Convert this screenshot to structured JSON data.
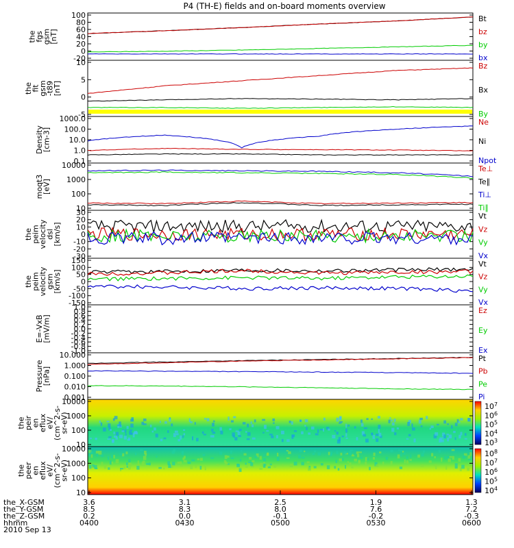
{
  "title": "P4 (TH-E) fields and on-board moments overview",
  "chart_data": [
    {
      "type": "line",
      "ylabel": [
        "the",
        "fgs",
        "gsm",
        "[nT]"
      ],
      "yticks": [
        "100",
        "80",
        "60",
        "40",
        "20",
        "0",
        "-20"
      ],
      "ylim": [
        -20,
        100
      ],
      "legend": [
        {
          "name": "Bt",
          "color": "#000000"
        },
        {
          "name": "bz",
          "color": "#cc0000"
        },
        {
          "name": "by",
          "color": "#00cc00"
        },
        {
          "name": "bx",
          "color": "#0000cc"
        }
      ],
      "series": [
        {
          "name": "Bt",
          "color": "#000000",
          "values": [
            48,
            55,
            63,
            72,
            80,
            90
          ]
        },
        {
          "name": "bz",
          "color": "#cc0000",
          "values": [
            48,
            55,
            63,
            72,
            80,
            90
          ]
        },
        {
          "name": "by",
          "color": "#00cc00",
          "values": [
            1,
            3,
            6,
            10,
            14,
            18
          ]
        },
        {
          "name": "bx",
          "color": "#0000cc",
          "values": [
            -4,
            -4,
            -4,
            -4,
            -4,
            -4
          ]
        }
      ]
    },
    {
      "type": "line",
      "ylabel": [
        "the",
        "fit",
        "gsm",
        "-t89",
        "[nT]"
      ],
      "yticks": [
        "10",
        "5",
        "0",
        "-5"
      ],
      "ylim": [
        -8,
        14
      ],
      "legend": [
        {
          "name": "Bz",
          "color": "#cc0000"
        },
        {
          "name": "Bx",
          "color": "#000000"
        },
        {
          "name": "By",
          "color": "#00cc00"
        }
      ],
      "series": [
        {
          "name": "Bz",
          "color": "#cc0000",
          "values": [
            1,
            4,
            6,
            8,
            10,
            11
          ]
        },
        {
          "name": "Bx",
          "color": "#000000",
          "values": [
            -2,
            -1.5,
            -1,
            -1.2,
            -1.5,
            -1
          ]
        },
        {
          "name": "By",
          "color": "#00cc00",
          "values": [
            -4.5,
            -4.5,
            -4.8,
            -4.5,
            -4.2,
            -4.5
          ]
        }
      ]
    },
    {
      "type": "line",
      "ylabel": [
        "Density",
        "[cm-3]"
      ],
      "yticks": [
        "1000.0",
        "100.0",
        "10.0",
        "1.0",
        "0.1"
      ],
      "ylim": [
        0.1,
        1000
      ],
      "log": true,
      "legend": [
        {
          "name": "Ne",
          "color": "#cc0000"
        },
        {
          "name": "Ni",
          "color": "#000000"
        },
        {
          "name": "Npot",
          "color": "#0000cc"
        }
      ],
      "series": [
        {
          "name": "Ne",
          "color": "#cc0000",
          "values": [
            1.2,
            1.8,
            1.5,
            1.4,
            1.3,
            1.1
          ]
        },
        {
          "name": "Ni",
          "color": "#000000",
          "values": [
            0.5,
            0.6,
            0.6,
            0.5,
            0.5,
            0.5
          ]
        },
        {
          "name": "Npot",
          "color": "#0000cc",
          "values": [
            8,
            25,
            2,
            20,
            80,
            150
          ]
        }
      ]
    },
    {
      "type": "line",
      "ylabel": [
        "moqt3",
        "[eV]"
      ],
      "yticks": [
        "10000",
        "1000",
        "100",
        "10"
      ],
      "ylim": [
        30,
        12000
      ],
      "log": true,
      "legend": [
        {
          "name": "Te⊥",
          "color": "#cc0000"
        },
        {
          "name": "Te∥",
          "color": "#000000"
        },
        {
          "name": "Ti⊥",
          "color": "#0000cc"
        },
        {
          "name": "Ti∥",
          "color": "#00cc00"
        }
      ],
      "series": [
        {
          "name": "Te⊥",
          "color": "#cc0000",
          "values": [
            75,
            70,
            95,
            70,
            75,
            80
          ]
        },
        {
          "name": "Te∥",
          "color": "#000000",
          "values": [
            60,
            55,
            80,
            55,
            60,
            65
          ]
        },
        {
          "name": "Ti⊥",
          "color": "#0000cc",
          "values": [
            4500,
            4800,
            4500,
            4200,
            3500,
            2200
          ]
        },
        {
          "name": "Ti∥",
          "color": "#00cc00",
          "values": [
            3500,
            3800,
            3500,
            3200,
            2800,
            1800
          ]
        }
      ]
    },
    {
      "type": "line",
      "ylabel": [
        "the",
        "peim",
        "velocity",
        "dsl",
        "[km/s]"
      ],
      "yticks": [
        "30",
        "20",
        "10",
        "0",
        "-10",
        "-20",
        "-30"
      ],
      "ylim": [
        -30,
        30
      ],
      "legend": [
        {
          "name": "Vt",
          "color": "#000000"
        },
        {
          "name": "Vz",
          "color": "#cc0000"
        },
        {
          "name": "Vy",
          "color": "#00cc00"
        },
        {
          "name": "Vx",
          "color": "#0000cc"
        }
      ],
      "series": [
        {
          "name": "Vt",
          "color": "#000000",
          "values": [
            10,
            10,
            10,
            10,
            10,
            10
          ]
        },
        {
          "name": "Vz",
          "color": "#cc0000",
          "values": [
            0,
            0,
            0,
            0,
            0,
            0
          ]
        },
        {
          "name": "Vy",
          "color": "#00cc00",
          "values": [
            -2,
            -2,
            -2,
            -2,
            -2,
            -2
          ]
        },
        {
          "name": "Vx",
          "color": "#0000cc",
          "values": [
            -5,
            -5,
            -5,
            -5,
            -5,
            -5
          ]
        }
      ]
    },
    {
      "type": "line",
      "ylabel": [
        "the",
        "peim",
        "velocity",
        "gsm",
        "[km/s]"
      ],
      "yticks": [
        "150",
        "100",
        "50",
        "0",
        "-50",
        "-100",
        "-150"
      ],
      "ylim": [
        -150,
        150
      ],
      "legend": [
        {
          "name": "Vt",
          "color": "#000000"
        },
        {
          "name": "Vz",
          "color": "#cc0000"
        },
        {
          "name": "Vy",
          "color": "#00cc00"
        },
        {
          "name": "Vx",
          "color": "#0000cc"
        }
      ],
      "series": [
        {
          "name": "Vt",
          "color": "#000000",
          "values": [
            60,
            65,
            75,
            70,
            75,
            80
          ]
        },
        {
          "name": "Vz",
          "color": "#cc0000",
          "values": [
            50,
            55,
            70,
            55,
            60,
            65
          ]
        },
        {
          "name": "Vy",
          "color": "#00cc00",
          "values": [
            15,
            20,
            25,
            20,
            30,
            35
          ]
        },
        {
          "name": "Vx",
          "color": "#0000cc",
          "values": [
            -30,
            -35,
            -45,
            -40,
            -45,
            -60
          ]
        }
      ]
    },
    {
      "type": "line",
      "ylabel": [
        "E=-VxB",
        "[mV/m]"
      ],
      "yticks": [
        "1.0",
        "0.8",
        "0.6",
        "0.4",
        "0.2",
        "0.0",
        "-0.2",
        "-0.4",
        "-0.6",
        "-0.8",
        "-1.0"
      ],
      "ylim": [
        -1,
        1
      ],
      "legend": [
        {
          "name": "Ez",
          "color": "#cc0000"
        },
        {
          "name": "Ey",
          "color": "#00cc00"
        },
        {
          "name": "Ex",
          "color": "#0000cc"
        }
      ],
      "series": []
    },
    {
      "type": "line",
      "ylabel": [
        "Pressure",
        "[nPa]"
      ],
      "yticks": [
        "10.000",
        "1.000",
        "0.100",
        "0.010",
        "0.001"
      ],
      "ylim": [
        0.001,
        10
      ],
      "log": true,
      "legend": [
        {
          "name": "Pt",
          "color": "#000000"
        },
        {
          "name": "Pb",
          "color": "#cc0000"
        },
        {
          "name": "Pe",
          "color": "#00cc00"
        },
        {
          "name": "Pi",
          "color": "#0000cc"
        }
      ],
      "series": [
        {
          "name": "Pt",
          "color": "#000000",
          "values": [
            1.2,
            1.6,
            2.1,
            2.6,
            3.2,
            4.0
          ]
        },
        {
          "name": "Pb",
          "color": "#cc0000",
          "values": [
            1.0,
            1.4,
            1.9,
            2.4,
            3.0,
            3.8
          ]
        },
        {
          "name": "Pe",
          "color": "#00cc00",
          "values": [
            0.015,
            0.014,
            0.012,
            0.01,
            0.008,
            0.007
          ]
        },
        {
          "name": "Pi",
          "color": "#0000cc",
          "values": [
            0.28,
            0.26,
            0.24,
            0.22,
            0.2,
            0.17
          ]
        }
      ]
    },
    {
      "type": "heatmap",
      "ylabel": [
        "the",
        "peir",
        "en",
        "eflux",
        "eV/",
        "(cm^2-s-",
        "sr-eV)"
      ],
      "yticks": [
        "10000",
        "1000",
        "100",
        "10"
      ],
      "ylim": [
        5,
        25000
      ],
      "log": true,
      "colorbar": {
        "labels": [
          "10^7",
          "10^6",
          "10^5",
          "10^4",
          "10^3"
        ],
        "range": [
          1000,
          10000000
        ]
      }
    },
    {
      "type": "heatmap",
      "ylabel": [
        "the",
        "peer",
        "en",
        "eflux",
        "eV/",
        "(cm^2-s-",
        "sr-eV)"
      ],
      "yticks": [
        "10000",
        "1000",
        "100",
        "10"
      ],
      "ylim": [
        5,
        25000
      ],
      "log": true,
      "colorbar": {
        "labels": [
          "10^8",
          "10^7",
          "10^6",
          "10^5",
          "10^4"
        ],
        "range": [
          10000,
          100000000
        ]
      }
    }
  ],
  "x_axis": {
    "rows": [
      {
        "label": "the_X-GSM",
        "values": [
          "3.6",
          "3.1",
          "2.5",
          "1.9",
          "1.3"
        ]
      },
      {
        "label": "the_Y-GSM",
        "values": [
          "8.5",
          "8.3",
          "8.0",
          "7.6",
          "7.2"
        ]
      },
      {
        "label": "the_Z-GSM",
        "values": [
          "0.2",
          "0.0",
          "-0.1",
          "-0.2",
          "-0.3"
        ]
      },
      {
        "label": "hhmm",
        "values": [
          "0400",
          "0430",
          "0500",
          "0530",
          "0600"
        ]
      }
    ],
    "date": "2010 Sep 13",
    "range": [
      "0400",
      "0600"
    ]
  }
}
